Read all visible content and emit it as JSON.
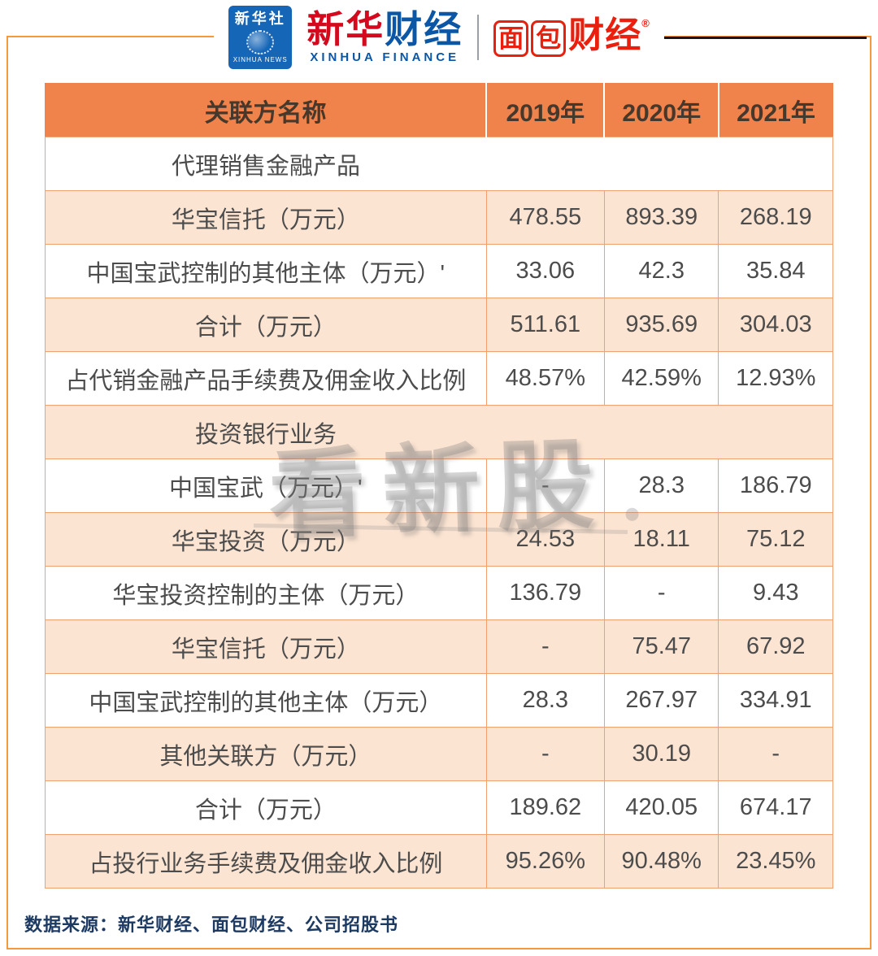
{
  "header": {
    "xinhua_news": {
      "cn": "新华社",
      "en": "XINHUA NEWS"
    },
    "xinhua_finance": {
      "cn_red": "新华",
      "cn_blue": "财经",
      "en": "XINHUA FINANCE"
    },
    "bread_finance": {
      "box1": "面",
      "box2": "包",
      "rest": "财经",
      "reg": "®"
    }
  },
  "watermark": "看新股",
  "chart_data": {
    "type": "table",
    "title": "",
    "columns": [
      "关联方名称",
      "2019年",
      "2020年",
      "2021年"
    ],
    "rows": [
      {
        "label": "代理销售金融产品",
        "section": true
      },
      {
        "label": "华宝信托（万元）",
        "values": [
          "478.55",
          "893.39",
          "268.19"
        ]
      },
      {
        "label": "中国宝武控制的其他主体（万元）'",
        "values": [
          "33.06",
          "42.3",
          "35.84"
        ]
      },
      {
        "label": "合计（万元）",
        "values": [
          "511.61",
          "935.69",
          "304.03"
        ]
      },
      {
        "label": "占代销金融产品手续费及佣金收入比例",
        "values": [
          "48.57%",
          "42.59%",
          "12.93%"
        ]
      },
      {
        "label": "投资银行业务",
        "section": true
      },
      {
        "label": "中国宝武（万元）'",
        "values": [
          "-",
          "28.3",
          "186.79"
        ]
      },
      {
        "label": "华宝投资（万元）",
        "values": [
          "24.53",
          "18.11",
          "75.12"
        ]
      },
      {
        "label": "华宝投资控制的主体（万元）",
        "values": [
          "136.79",
          "-",
          "9.43"
        ]
      },
      {
        "label": "华宝信托（万元）",
        "values": [
          "-",
          "75.47",
          "67.92"
        ]
      },
      {
        "label": "中国宝武控制的其他主体（万元）",
        "values": [
          "28.3",
          "267.97",
          "334.91"
        ]
      },
      {
        "label": "其他关联方（万元）",
        "values": [
          "-",
          "30.19",
          "-"
        ]
      },
      {
        "label": "合计（万元）",
        "values": [
          "189.62",
          "420.05",
          "674.17"
        ]
      },
      {
        "label": "占投行业务手续费及佣金收入比例",
        "values": [
          "95.26%",
          "90.48%",
          "23.45%"
        ]
      }
    ]
  },
  "footer": {
    "source": "数据来源：新华财经、面包财经、公司招股书"
  },
  "colors": {
    "header_bg": "#F0824C",
    "row_alt_bg": "#FCE4D2",
    "frame_border": "#F49A3C",
    "brand_red": "#E8200D",
    "brand_blue": "#0B57A5",
    "news_logo_blue": "#1666B8",
    "source_text": "#1D3A63"
  }
}
